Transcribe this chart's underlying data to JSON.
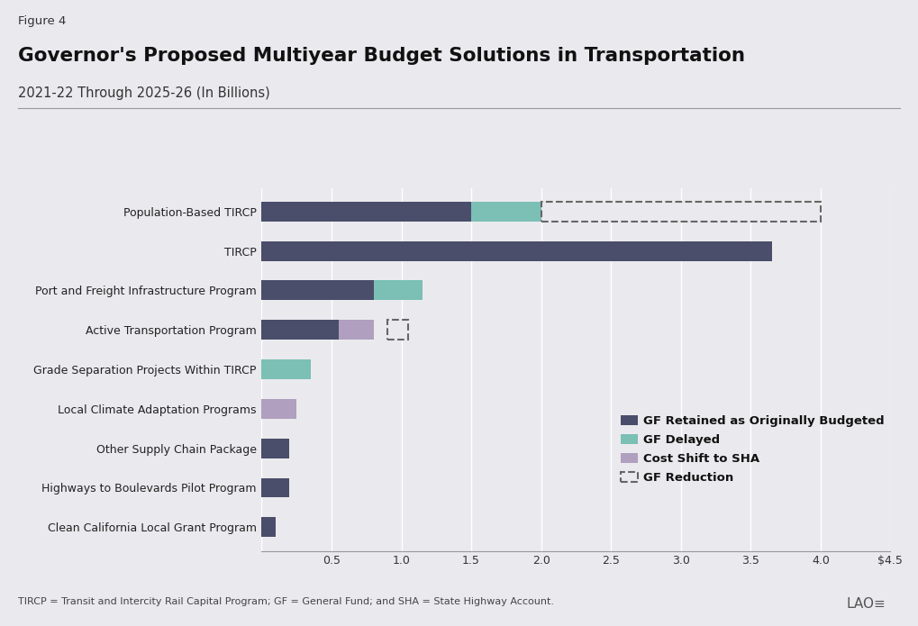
{
  "title": "Governor's Proposed Multiyear Budget Solutions in Transportation",
  "subtitle": "2021-22 Through 2025-26 (In Billions)",
  "figure_label": "Figure 4",
  "footnote": "TIRCP = Transit and Intercity Rail Capital Program; GF = General Fund; and SHA = State Highway Account.",
  "categories": [
    "Population-Based TIRCP",
    "TIRCP",
    "Port and Freight Infrastructure Program",
    "Active Transportation Program",
    "Grade Separation Projects Within TIRCP",
    "Local Climate Adaptation Programs",
    "Other Supply Chain Package",
    "Highways to Boulevards Pilot Program",
    "Clean California Local Grant Program"
  ],
  "gf_retained": [
    1.5,
    3.65,
    0.8,
    0.55,
    0.0,
    0.0,
    0.2,
    0.2,
    0.1
  ],
  "gf_delayed": [
    0.5,
    0.0,
    0.35,
    0.0,
    0.35,
    0.0,
    0.0,
    0.0,
    0.0
  ],
  "cost_shift": [
    0.0,
    0.0,
    0.0,
    0.25,
    0.0,
    0.25,
    0.0,
    0.0,
    0.0
  ],
  "gf_reduction": [
    2.0,
    0.0,
    0.0,
    0.15,
    0.0,
    0.0,
    0.0,
    0.0,
    0.0
  ],
  "gf_reduction_start": [
    2.0,
    0.0,
    0.0,
    0.9,
    0.0,
    0.0,
    0.0,
    0.0,
    0.0
  ],
  "color_retained": "#4a4e6a",
  "color_delayed": "#7bbfb5",
  "color_cost_shift": "#b09fbe",
  "color_reduction_edge": "#666666",
  "xlim": [
    0,
    4.5
  ],
  "xticks": [
    0,
    0.5,
    1.0,
    1.5,
    2.0,
    2.5,
    3.0,
    3.5,
    4.0,
    4.5
  ],
  "xtick_labels": [
    "",
    "0.5",
    "1.0",
    "1.5",
    "2.0",
    "2.5",
    "3.0",
    "3.5",
    "4.0",
    "$4.5"
  ],
  "background_color": "#eaeaee",
  "bar_height": 0.5
}
